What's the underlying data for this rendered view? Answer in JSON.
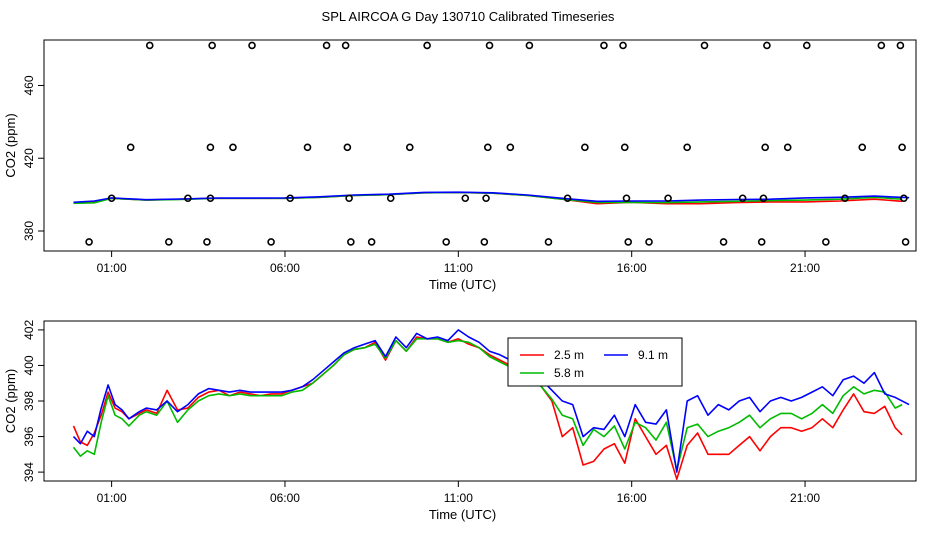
{
  "title": "SPL AIRCOA G  Day 130710  Calibrated Timeseries",
  "chart_data": [
    {
      "type": "line",
      "panel": "top",
      "xlabel": "Time (UTC)",
      "ylabel": "CO2 (ppm)",
      "xlim": [
        -0.95,
        24.2
      ],
      "ylim": [
        369,
        485
      ],
      "x_ticks": [
        1,
        6,
        11,
        16,
        21
      ],
      "x_tick_labels": [
        "01:00",
        "06:00",
        "11:00",
        "16:00",
        "21:00"
      ],
      "y_ticks": [
        380,
        420,
        460
      ],
      "y_tick_labels": [
        "380",
        "420",
        "460"
      ],
      "colors": {
        "2.5 m": "#ff0000",
        "5.8 m": "#00bb00",
        "9.1 m": "#0000ff",
        "points": "#000000"
      },
      "points": [
        {
          "x": 0.35,
          "y": 374
        },
        {
          "x": 1.0,
          "y": 398
        },
        {
          "x": 1.55,
          "y": 426
        },
        {
          "x": 2.1,
          "y": 482
        },
        {
          "x": 2.65,
          "y": 374
        },
        {
          "x": 3.2,
          "y": 398
        },
        {
          "x": 3.75,
          "y": 374
        },
        {
          "x": 3.85,
          "y": 398
        },
        {
          "x": 3.85,
          "y": 426
        },
        {
          "x": 3.9,
          "y": 482
        },
        {
          "x": 4.5,
          "y": 426
        },
        {
          "x": 5.05,
          "y": 482
        },
        {
          "x": 5.6,
          "y": 374
        },
        {
          "x": 6.15,
          "y": 398
        },
        {
          "x": 6.65,
          "y": 426
        },
        {
          "x": 7.2,
          "y": 482
        },
        {
          "x": 7.75,
          "y": 482
        },
        {
          "x": 7.8,
          "y": 426
        },
        {
          "x": 7.85,
          "y": 398
        },
        {
          "x": 7.9,
          "y": 374
        },
        {
          "x": 8.5,
          "y": 374
        },
        {
          "x": 9.05,
          "y": 398
        },
        {
          "x": 9.6,
          "y": 426
        },
        {
          "x": 10.1,
          "y": 482
        },
        {
          "x": 10.65,
          "y": 374
        },
        {
          "x": 11.2,
          "y": 398
        },
        {
          "x": 11.75,
          "y": 374
        },
        {
          "x": 11.8,
          "y": 398
        },
        {
          "x": 11.85,
          "y": 426
        },
        {
          "x": 11.9,
          "y": 482
        },
        {
          "x": 12.5,
          "y": 426
        },
        {
          "x": 13.05,
          "y": 482
        },
        {
          "x": 13.6,
          "y": 374
        },
        {
          "x": 14.15,
          "y": 398
        },
        {
          "x": 14.65,
          "y": 426
        },
        {
          "x": 15.2,
          "y": 482
        },
        {
          "x": 15.75,
          "y": 482
        },
        {
          "x": 15.8,
          "y": 426
        },
        {
          "x": 15.85,
          "y": 398
        },
        {
          "x": 15.9,
          "y": 374
        },
        {
          "x": 16.5,
          "y": 374
        },
        {
          "x": 17.05,
          "y": 398
        },
        {
          "x": 17.6,
          "y": 426
        },
        {
          "x": 18.1,
          "y": 482
        },
        {
          "x": 18.65,
          "y": 374
        },
        {
          "x": 19.2,
          "y": 398
        },
        {
          "x": 19.75,
          "y": 374
        },
        {
          "x": 19.8,
          "y": 398
        },
        {
          "x": 19.85,
          "y": 426
        },
        {
          "x": 19.9,
          "y": 482
        },
        {
          "x": 20.5,
          "y": 426
        },
        {
          "x": 21.05,
          "y": 482
        },
        {
          "x": 21.6,
          "y": 374
        },
        {
          "x": 22.15,
          "y": 398
        },
        {
          "x": 22.65,
          "y": 426
        },
        {
          "x": 23.2,
          "y": 482
        },
        {
          "x": 23.75,
          "y": 482
        },
        {
          "x": 23.8,
          "y": 426
        },
        {
          "x": 23.85,
          "y": 398
        },
        {
          "x": 23.9,
          "y": 374
        }
      ],
      "series": [
        {
          "name": "2.5 m",
          "x": [
            -0.1,
            0.5,
            1.0,
            2.0,
            3.0,
            4.0,
            5.0,
            6.0,
            7.0,
            8.0,
            9.0,
            10.0,
            11.0,
            12.0,
            13.0,
            14.0,
            15.0,
            16.0,
            17.0,
            18.0,
            19.0,
            20.0,
            21.0,
            22.0,
            23.0,
            23.8
          ],
          "y": [
            395.5,
            396.0,
            398.0,
            397.0,
            397.5,
            398.0,
            398.0,
            398.0,
            398.5,
            399.5,
            400.0,
            401.0,
            401.2,
            400.8,
            399.5,
            397.5,
            395.0,
            395.8,
            395.0,
            395.0,
            395.6,
            396.0,
            396.0,
            396.5,
            397.5,
            396.3
          ]
        },
        {
          "name": "5.8 m",
          "x": [
            -0.1,
            0.5,
            1.0,
            2.0,
            3.0,
            4.0,
            5.0,
            6.0,
            7.0,
            8.0,
            9.0,
            10.0,
            11.0,
            12.0,
            13.0,
            14.0,
            15.0,
            16.0,
            17.0,
            18.0,
            19.0,
            20.0,
            21.0,
            22.0,
            23.0,
            23.8
          ],
          "y": [
            395.2,
            395.5,
            398.0,
            397.0,
            397.3,
            398.0,
            398.0,
            398.0,
            398.5,
            399.5,
            400.0,
            401.0,
            401.2,
            400.8,
            399.5,
            397.5,
            395.7,
            395.7,
            395.6,
            396.0,
            396.3,
            396.7,
            397.0,
            397.5,
            398.5,
            397.5
          ]
        },
        {
          "name": "9.1 m",
          "x": [
            -0.1,
            0.5,
            1.0,
            2.0,
            3.0,
            4.0,
            5.0,
            6.0,
            7.0,
            8.0,
            9.0,
            10.0,
            11.0,
            12.0,
            13.0,
            14.0,
            15.0,
            16.0,
            17.0,
            18.0,
            19.0,
            20.0,
            21.0,
            22.0,
            23.0,
            24.0
          ],
          "y": [
            395.8,
            396.5,
            398.2,
            397.2,
            397.6,
            398.1,
            398.1,
            398.2,
            398.8,
            399.8,
            400.2,
            401.2,
            401.3,
            401.0,
            399.8,
            398.0,
            396.3,
            396.5,
            396.5,
            397.0,
            397.3,
            397.5,
            398.2,
            398.5,
            399.2,
            398.3
          ]
        }
      ]
    },
    {
      "type": "line",
      "panel": "bottom",
      "xlabel": "Time (UTC)",
      "ylabel": "CO2 (ppm)",
      "xlim": [
        -0.95,
        24.2
      ],
      "ylim": [
        393.5,
        402.5
      ],
      "x_ticks": [
        1,
        6,
        11,
        16,
        21
      ],
      "x_tick_labels": [
        "01:00",
        "06:00",
        "11:00",
        "16:00",
        "21:00"
      ],
      "y_ticks": [
        394,
        396,
        398,
        400,
        402
      ],
      "y_tick_labels": [
        "394",
        "396",
        "398",
        "400",
        "402"
      ],
      "legend": {
        "position": "top-right-center",
        "entries": [
          "2.5 m",
          "9.1 m",
          "5.8 m"
        ]
      },
      "colors": {
        "2.5 m": "#ff0000",
        "5.8 m": "#00bb00",
        "9.1 m": "#0000ff"
      },
      "series": [
        {
          "name": "2.5 m",
          "x": [
            -0.1,
            0.1,
            0.3,
            0.5,
            0.7,
            0.9,
            1.1,
            1.3,
            1.5,
            1.8,
            2.0,
            2.3,
            2.6,
            2.9,
            3.2,
            3.5,
            3.8,
            4.1,
            4.4,
            4.7,
            5.0,
            5.3,
            5.6,
            5.9,
            6.2,
            6.5,
            6.8,
            7.1,
            7.4,
            7.7,
            8.0,
            8.3,
            8.6,
            8.9,
            9.2,
            9.5,
            9.8,
            10.1,
            10.4,
            10.7,
            11.0,
            11.3,
            11.6,
            11.9,
            12.2,
            12.5,
            12.8,
            13.1,
            13.4,
            13.7,
            14.0,
            14.3,
            14.6,
            14.9,
            15.2,
            15.5,
            15.8,
            16.1,
            16.4,
            16.7,
            17.0,
            17.3,
            17.6,
            17.9,
            18.2,
            18.5,
            18.8,
            19.1,
            19.4,
            19.7,
            20.0,
            20.3,
            20.6,
            20.9,
            21.2,
            21.5,
            21.8,
            22.1,
            22.4,
            22.7,
            23.0,
            23.3,
            23.6,
            23.8
          ],
          "y": [
            396.6,
            395.7,
            395.5,
            396.2,
            397.2,
            398.5,
            397.6,
            397.4,
            397.0,
            397.3,
            397.5,
            397.3,
            398.6,
            397.5,
            397.6,
            398.2,
            398.5,
            398.6,
            398.3,
            398.5,
            398.4,
            398.3,
            398.4,
            398.4,
            398.6,
            398.8,
            399.0,
            399.5,
            400.0,
            400.6,
            400.9,
            401.0,
            401.3,
            400.3,
            401.4,
            400.8,
            401.6,
            401.5,
            401.5,
            401.3,
            401.5,
            401.2,
            401.0,
            400.6,
            400.3,
            400.0,
            399.7,
            399.4,
            398.8,
            398.0,
            396.0,
            396.5,
            394.4,
            394.6,
            395.3,
            395.6,
            394.5,
            397.0,
            396.0,
            395.0,
            395.5,
            393.6,
            395.5,
            396.2,
            395.0,
            395.0,
            395.0,
            395.5,
            396.0,
            395.2,
            396.0,
            396.5,
            396.5,
            396.3,
            396.5,
            397.0,
            396.5,
            397.5,
            398.4,
            397.4,
            397.3,
            397.7,
            396.5,
            396.1
          ]
        },
        {
          "name": "5.8 m",
          "x": [
            -0.1,
            0.1,
            0.3,
            0.5,
            0.7,
            0.9,
            1.1,
            1.3,
            1.5,
            1.8,
            2.0,
            2.3,
            2.6,
            2.9,
            3.2,
            3.5,
            3.8,
            4.1,
            4.4,
            4.7,
            5.0,
            5.3,
            5.6,
            5.9,
            6.2,
            6.5,
            6.8,
            7.1,
            7.4,
            7.7,
            8.0,
            8.3,
            8.6,
            8.9,
            9.2,
            9.5,
            9.8,
            10.1,
            10.4,
            10.7,
            11.0,
            11.3,
            11.6,
            11.9,
            12.2,
            12.5,
            12.8,
            13.1,
            13.4,
            13.7,
            14.0,
            14.3,
            14.6,
            14.9,
            15.2,
            15.5,
            15.8,
            16.1,
            16.4,
            16.7,
            17.0,
            17.3,
            17.6,
            17.9,
            18.2,
            18.5,
            18.8,
            19.1,
            19.4,
            19.7,
            20.0,
            20.3,
            20.6,
            20.9,
            21.2,
            21.5,
            21.8,
            22.1,
            22.4,
            22.7,
            23.0,
            23.3,
            23.6,
            23.8
          ],
          "y": [
            395.4,
            394.9,
            395.2,
            395.0,
            396.8,
            398.3,
            397.2,
            397.0,
            396.6,
            397.2,
            397.4,
            397.2,
            398.0,
            396.8,
            397.5,
            398.0,
            398.3,
            398.4,
            398.3,
            398.4,
            398.3,
            398.3,
            398.3,
            398.3,
            398.5,
            398.6,
            399.0,
            399.5,
            400.0,
            400.6,
            400.9,
            401.0,
            401.2,
            400.4,
            401.4,
            400.8,
            401.5,
            401.5,
            401.5,
            401.3,
            401.4,
            401.3,
            401.0,
            400.5,
            400.2,
            399.9,
            399.6,
            399.3,
            398.8,
            398.1,
            397.2,
            397.0,
            395.5,
            396.4,
            396.0,
            396.6,
            395.3,
            396.8,
            396.5,
            395.8,
            396.8,
            394.1,
            396.5,
            396.7,
            396.0,
            396.3,
            396.5,
            396.8,
            397.2,
            396.5,
            397.0,
            397.3,
            397.3,
            397.0,
            397.3,
            397.8,
            397.3,
            398.3,
            398.8,
            398.4,
            398.6,
            398.5,
            397.6,
            397.8
          ]
        },
        {
          "name": "9.1 m",
          "x": [
            -0.1,
            0.1,
            0.3,
            0.5,
            0.7,
            0.9,
            1.1,
            1.3,
            1.5,
            1.8,
            2.0,
            2.3,
            2.6,
            2.9,
            3.2,
            3.5,
            3.8,
            4.1,
            4.4,
            4.7,
            5.0,
            5.3,
            5.6,
            5.9,
            6.2,
            6.5,
            6.8,
            7.1,
            7.4,
            7.7,
            8.0,
            8.3,
            8.6,
            8.9,
            9.2,
            9.5,
            9.8,
            10.1,
            10.4,
            10.7,
            11.0,
            11.3,
            11.6,
            11.9,
            12.2,
            12.5,
            12.8,
            13.1,
            13.4,
            13.7,
            14.0,
            14.3,
            14.6,
            14.9,
            15.2,
            15.5,
            15.8,
            16.1,
            16.4,
            16.7,
            17.0,
            17.3,
            17.6,
            17.9,
            18.2,
            18.5,
            18.8,
            19.1,
            19.4,
            19.7,
            20.0,
            20.3,
            20.6,
            20.9,
            21.2,
            21.5,
            21.8,
            22.1,
            22.4,
            22.7,
            23.0,
            23.3,
            23.6,
            24.0
          ],
          "y": [
            396.0,
            395.6,
            396.3,
            396.0,
            397.6,
            398.9,
            397.8,
            397.5,
            397.0,
            397.4,
            397.6,
            397.5,
            398.0,
            397.4,
            397.8,
            398.4,
            398.7,
            398.6,
            398.5,
            398.6,
            398.5,
            398.5,
            398.5,
            398.5,
            398.6,
            398.8,
            399.2,
            399.7,
            400.2,
            400.7,
            401.0,
            401.2,
            401.4,
            400.5,
            401.6,
            401.0,
            401.8,
            401.5,
            401.6,
            401.4,
            402.0,
            401.6,
            401.3,
            400.8,
            400.6,
            400.3,
            400.0,
            399.7,
            399.2,
            398.6,
            398.0,
            397.8,
            396.0,
            396.5,
            396.4,
            397.2,
            396.0,
            397.8,
            396.8,
            396.7,
            397.5,
            394.0,
            398.0,
            398.3,
            397.2,
            397.8,
            397.5,
            398.0,
            398.2,
            397.4,
            398.0,
            398.2,
            398.0,
            398.2,
            398.5,
            398.8,
            398.3,
            399.2,
            399.4,
            399.0,
            399.6,
            398.4,
            398.2,
            397.8
          ]
        }
      ]
    }
  ]
}
